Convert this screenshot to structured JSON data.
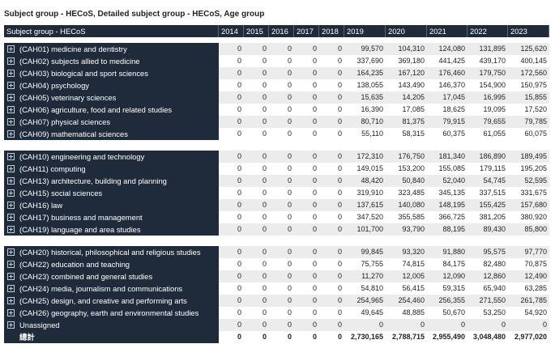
{
  "title": "Subject group - HECoS, Detailed subject group - HECoS, Age group",
  "table": {
    "header": [
      "Subject group - HECoS",
      "2014",
      "2015",
      "2016",
      "2017",
      "2018",
      "2019",
      "2020",
      "2021",
      "2022",
      "2023"
    ],
    "groups": [
      {
        "rows": [
          [
            "(CAH01) medicine and dentistry",
            "0",
            "0",
            "0",
            "0",
            "0",
            "99,570",
            "104,310",
            "124,080",
            "131,895",
            "125,620"
          ],
          [
            "(CAH02) subjects allied to medicine",
            "0",
            "0",
            "0",
            "0",
            "0",
            "337,690",
            "369,180",
            "441,425",
            "439,170",
            "400,145"
          ],
          [
            "(CAH03) biological and sport sciences",
            "0",
            "0",
            "0",
            "0",
            "0",
            "164,235",
            "167,120",
            "176,460",
            "179,750",
            "172,560"
          ],
          [
            "(CAH04) psychology",
            "0",
            "0",
            "0",
            "0",
            "0",
            "138,055",
            "143,490",
            "146,370",
            "154,900",
            "150,975"
          ],
          [
            "(CAH05) veterinary sciences",
            "0",
            "0",
            "0",
            "0",
            "0",
            "15,635",
            "14,205",
            "17,045",
            "16,995",
            "15,855"
          ],
          [
            "(CAH06) agriculture, food and related studies",
            "0",
            "0",
            "0",
            "0",
            "0",
            "16,390",
            "17,085",
            "18,625",
            "19,095",
            "17,520"
          ],
          [
            "(CAH07) physical sciences",
            "0",
            "0",
            "0",
            "0",
            "0",
            "80,710",
            "81,375",
            "79,915",
            "79,655",
            "79,785"
          ],
          [
            "(CAH09) mathematical sciences",
            "0",
            "0",
            "0",
            "0",
            "0",
            "55,110",
            "58,315",
            "60,375",
            "61,055",
            "60,075"
          ]
        ]
      },
      {
        "rows": [
          [
            "(CAH10) engineering and technology",
            "0",
            "0",
            "0",
            "0",
            "0",
            "172,310",
            "176,750",
            "181,340",
            "186,890",
            "189,495"
          ],
          [
            "(CAH11) computing",
            "0",
            "0",
            "0",
            "0",
            "0",
            "149,015",
            "153,200",
            "155,085",
            "179,115",
            "195,205"
          ],
          [
            "(CAH13) architecture, building and planning",
            "0",
            "0",
            "0",
            "0",
            "0",
            "48,420",
            "50,840",
            "52,040",
            "54,745",
            "52,595"
          ],
          [
            "(CAH15) social sciences",
            "0",
            "0",
            "0",
            "0",
            "0",
            "319,910",
            "323,485",
            "345,135",
            "337,515",
            "331,675"
          ],
          [
            "(CAH16) law",
            "0",
            "0",
            "0",
            "0",
            "0",
            "137,615",
            "140,080",
            "148,195",
            "155,425",
            "157,680"
          ],
          [
            "(CAH17) business and management",
            "0",
            "0",
            "0",
            "0",
            "0",
            "347,520",
            "355,585",
            "366,725",
            "381,205",
            "380,920"
          ],
          [
            "(CAH19) language and area studies",
            "0",
            "0",
            "0",
            "0",
            "0",
            "101,700",
            "93,790",
            "88,195",
            "89,430",
            "85,800"
          ]
        ]
      },
      {
        "rows": [
          [
            "(CAH20) historical, philosophical and religious studies",
            "0",
            "0",
            "0",
            "0",
            "0",
            "99,845",
            "93,320",
            "91,880",
            "95,575",
            "97,770"
          ],
          [
            "(CAH22) education and teaching",
            "0",
            "0",
            "0",
            "0",
            "0",
            "75,755",
            "74,815",
            "84,175",
            "82,480",
            "70,875"
          ],
          [
            "(CAH23) combined and general studies",
            "0",
            "0",
            "0",
            "0",
            "0",
            "11,270",
            "12,005",
            "12,090",
            "12,860",
            "12,490"
          ],
          [
            "(CAH24) media, journalism and communications",
            "0",
            "0",
            "0",
            "0",
            "0",
            "54,810",
            "56,415",
            "59,315",
            "65,940",
            "63,285"
          ],
          [
            "(CAH25) design, and creative and performing arts",
            "0",
            "0",
            "0",
            "0",
            "0",
            "254,965",
            "254,460",
            "256,355",
            "271,550",
            "261,785"
          ],
          [
            "(CAH26) geography, earth and environmental studies",
            "0",
            "0",
            "0",
            "0",
            "0",
            "49,645",
            "48,885",
            "50,670",
            "53,250",
            "54,920"
          ],
          [
            "Unassigned",
            "0",
            "0",
            "0",
            "0",
            "0",
            "0",
            "0",
            "0",
            "0",
            "0"
          ],
          [
            "總計",
            "0",
            "0",
            "0",
            "0",
            "0",
            "2,730,165",
            "2,788,715",
            "2,955,490",
            "3,048,480",
            "2,977,020"
          ]
        ]
      }
    ]
  }
}
